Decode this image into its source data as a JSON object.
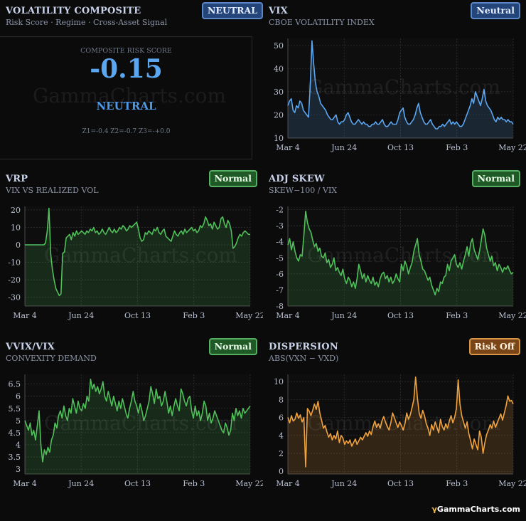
{
  "composite": {
    "title": "VOLATILITY COMPOSITE",
    "subtitle": "Risk Score · Regime · Cross-Asset Signal",
    "badge": "NEUTRAL",
    "label": "COMPOSITE RISK SCORE",
    "value": "-0.15",
    "regime": "NEUTRAL",
    "zscores": "Z1=-0.4  Z2=-0.7  Z3=-+0.0"
  },
  "watermark": "GammaCharts.com",
  "footer": {
    "brand": "GammaCharts.com",
    "icon": "gamma-icon"
  },
  "colors": {
    "blue": "#5ba6f0",
    "green": "#4fc05a",
    "orange": "#f0a23c"
  },
  "chart_data": [
    {
      "id": "vix",
      "type": "area",
      "title": "VIX",
      "subtitle": "CBOE VOLATILITY INDEX",
      "badge": "Neutral",
      "badge_style": "blue",
      "color": "#5ba6f0",
      "ylim": [
        10,
        53
      ],
      "yticks": [
        10,
        20,
        30,
        40,
        50
      ],
      "xticks": [
        "Mar 4",
        "Jun 24",
        "Oct 13",
        "Feb 3",
        "May 22"
      ],
      "values": [
        24,
        26,
        27,
        22,
        21,
        24,
        23,
        26,
        25,
        22,
        21,
        20,
        19,
        33,
        52,
        42,
        34,
        30,
        28,
        25,
        24,
        23,
        22,
        20,
        19,
        18,
        18,
        19,
        20,
        17,
        16,
        17,
        17,
        18,
        20,
        21,
        19,
        17,
        16,
        16,
        17,
        18,
        17,
        16,
        17,
        16,
        16,
        15,
        15,
        16,
        16,
        17,
        16,
        16,
        17,
        18,
        16,
        15,
        15,
        16,
        17,
        16,
        16,
        16,
        18,
        21,
        22,
        23,
        19,
        17,
        16,
        16,
        17,
        18,
        20,
        23,
        25,
        21,
        19,
        17,
        16,
        16,
        17,
        18,
        16,
        15,
        14,
        14,
        15,
        15,
        16,
        15,
        16,
        17,
        18,
        16,
        17,
        16,
        17,
        16,
        15,
        15,
        16,
        18,
        20,
        22,
        24,
        27,
        25,
        30,
        28,
        26,
        24,
        27,
        31,
        26,
        24,
        23,
        22,
        20,
        18,
        17,
        19,
        18,
        19,
        18,
        18,
        17,
        18,
        17,
        17,
        16
      ]
    },
    {
      "id": "vrp",
      "type": "area",
      "title": "VRP",
      "subtitle": "VIX VS REALIZED VOL",
      "badge": "Normal",
      "badge_style": "green",
      "color": "#4fc05a",
      "ylim": [
        -35,
        22
      ],
      "yticks": [
        -30,
        -20,
        -10,
        0,
        10,
        20
      ],
      "xticks": [
        "Mar 4",
        "Jun 24",
        "Oct 13",
        "Feb 3",
        "May 22"
      ],
      "values": [
        0,
        0,
        0,
        0,
        0,
        0,
        0,
        0,
        0,
        0,
        0,
        0,
        1,
        8,
        21,
        -5,
        -14,
        -20,
        -25,
        -27,
        -29,
        -28,
        -5,
        -4,
        4,
        5,
        6,
        3,
        7,
        5,
        8,
        6,
        7,
        8,
        7,
        6,
        8,
        7,
        9,
        8,
        10,
        7,
        8,
        6,
        7,
        9,
        7,
        6,
        8,
        10,
        8,
        7,
        9,
        7,
        8,
        10,
        9,
        11,
        10,
        8,
        9,
        11,
        10,
        11,
        12,
        13,
        9,
        4,
        2,
        3,
        7,
        6,
        8,
        7,
        6,
        9,
        8,
        10,
        7,
        6,
        8,
        9,
        5,
        4,
        3,
        2,
        5,
        8,
        6,
        5,
        7,
        8,
        6,
        9,
        7,
        8,
        9,
        10,
        8,
        9,
        7,
        8,
        11,
        10,
        12,
        16,
        14,
        11,
        12,
        9,
        13,
        11,
        9,
        10,
        15,
        16,
        12,
        10,
        14,
        12,
        8,
        -2,
        -1,
        1,
        4,
        6,
        5,
        7,
        8,
        7,
        6,
        6
      ]
    },
    {
      "id": "adj_skew",
      "type": "area",
      "title": "ADJ SKEW",
      "subtitle": "SKEW−100 / VIX",
      "badge": "Normal",
      "badge_style": "green",
      "color": "#4fc05a",
      "ylim": [
        -8,
        -1.8
      ],
      "yticks": [
        -8,
        -7,
        -6,
        -5,
        -4,
        -3,
        -2
      ],
      "xticks": [
        "Mar 4",
        "Jun 24",
        "Oct 13",
        "Feb 3",
        "May 22"
      ],
      "values": [
        -4.2,
        -3.8,
        -4.5,
        -4.0,
        -4.6,
        -5.0,
        -5.2,
        -4.8,
        -4.9,
        -3.6,
        -2.1,
        -2.8,
        -3.2,
        -3.4,
        -3.9,
        -4.3,
        -4.1,
        -4.6,
        -4.4,
        -4.9,
        -5.0,
        -4.7,
        -5.3,
        -5.1,
        -5.6,
        -5.4,
        -5.0,
        -5.8,
        -5.6,
        -5.9,
        -6.1,
        -5.7,
        -6.3,
        -6.6,
        -6.2,
        -6.4,
        -6.8,
        -6.5,
        -6.9,
        -6.3,
        -5.4,
        -5.8,
        -6.3,
        -6.0,
        -6.5,
        -6.1,
        -6.4,
        -6.6,
        -6.2,
        -6.7,
        -6.5,
        -6.8,
        -6.3,
        -6.0,
        -5.9,
        -6.3,
        -6.1,
        -6.5,
        -6.2,
        -6.6,
        -6.4,
        -6.0,
        -6.3,
        -6.5,
        -5.4,
        -5.8,
        -5.2,
        -5.5,
        -6.0,
        -5.6,
        -5.3,
        -4.6,
        -4.2,
        -3.8,
        -4.8,
        -5.2,
        -5.7,
        -5.8,
        -6.1,
        -6.4,
        -6.2,
        -6.7,
        -7.0,
        -7.3,
        -6.9,
        -7.1,
        -6.5,
        -6.6,
        -6.2,
        -6.1,
        -5.4,
        -5.8,
        -5.2,
        -5.0,
        -4.8,
        -5.4,
        -5.6,
        -5.3,
        -5.7,
        -5.2,
        -4.8,
        -4.3,
        -4.9,
        -4.1,
        -3.8,
        -4.5,
        -4.8,
        -5.1,
        -4.6,
        -3.9,
        -3.2,
        -3.6,
        -4.4,
        -4.8,
        -5.2,
        -4.9,
        -5.5,
        -5.3,
        -5.8,
        -5.4,
        -5.6,
        -5.9,
        -5.6,
        -5.7,
        -5.5,
        -5.8,
        -6.0,
        -5.9
      ]
    },
    {
      "id": "vvix_vix",
      "type": "area",
      "title": "VVIX/VIX",
      "subtitle": "CONVEXITY DEMAND",
      "badge": "Normal",
      "badge_style": "green",
      "color": "#4fc05a",
      "ylim": [
        2.8,
        6.9
      ],
      "yticks": [
        3,
        3.5,
        4,
        4.5,
        5,
        5.5,
        6,
        6.5
      ],
      "xticks": [
        "Mar 4",
        "Jun 24",
        "Oct 13",
        "Feb 3",
        "May 22"
      ],
      "values": [
        5.0,
        4.8,
        4.6,
        4.9,
        4.4,
        4.6,
        4.2,
        4.8,
        5.4,
        4.0,
        3.3,
        3.8,
        3.6,
        3.9,
        3.7,
        4.2,
        4.4,
        4.9,
        4.7,
        5.2,
        5.4,
        5.1,
        5.6,
        5.2,
        5.0,
        5.5,
        5.3,
        5.9,
        5.6,
        5.3,
        5.8,
        5.5,
        5.4,
        5.7,
        5.5,
        6.0,
        5.8,
        6.7,
        6.3,
        6.5,
        6.2,
        6.4,
        6.1,
        6.3,
        6.6,
        6.0,
        5.8,
        6.2,
        5.9,
        5.6,
        6.0,
        5.7,
        5.4,
        5.8,
        5.5,
        5.9,
        5.6,
        5.3,
        5.1,
        5.5,
        5.8,
        6.2,
        5.8,
        5.6,
        5.3,
        5.7,
        5.4,
        5.0,
        5.2,
        5.5,
        5.8,
        6.4,
        6.1,
        5.7,
        6.3,
        5.9,
        6.0,
        5.6,
        5.8,
        6.2,
        5.8,
        5.3,
        5.6,
        5.2,
        5.6,
        5.9,
        5.6,
        5.4,
        6.3,
        6.1,
        5.8,
        5.6,
        5.9,
        6.0,
        5.4,
        5.1,
        5.6,
        5.2,
        5.4,
        5.0,
        5.3,
        5.8,
        5.6,
        5.0,
        5.3,
        4.9,
        5.1,
        5.4,
        5.2,
        5.0,
        4.8,
        4.6,
        4.5,
        4.9,
        4.7,
        4.4,
        4.6,
        5.3,
        5.0,
        5.5,
        5.2,
        5.4,
        5.1,
        5.5,
        5.3,
        5.4,
        5.5,
        5.6
      ]
    },
    {
      "id": "dispersion",
      "type": "area",
      "title": "DISPERSION",
      "subtitle": "ABS(VXN − VXD)",
      "badge": "Risk Off",
      "badge_style": "orange",
      "color": "#f0a23c",
      "ylim": [
        -0.3,
        10.8
      ],
      "yticks": [
        0,
        2,
        4,
        6,
        8,
        10
      ],
      "xticks": [
        "Mar 4",
        "Jun 24",
        "Oct 13",
        "Feb 3",
        "May 22"
      ],
      "values": [
        6.0,
        5.4,
        6.2,
        5.6,
        5.8,
        6.5,
        5.9,
        6.3,
        5.5,
        6.0,
        0.5,
        7.0,
        6.7,
        6.2,
        6.8,
        7.5,
        6.9,
        7.8,
        6.5,
        5.7,
        4.8,
        5.1,
        4.4,
        3.8,
        4.2,
        3.5,
        4.0,
        3.6,
        4.5,
        3.2,
        4.0,
        3.7,
        3.0,
        3.4,
        3.1,
        3.5,
        2.8,
        3.2,
        3.6,
        3.0,
        3.4,
        3.8,
        3.5,
        3.9,
        4.3,
        3.9,
        4.5,
        4.1,
        5.0,
        5.6,
        4.9,
        5.3,
        4.8,
        5.6,
        6.1,
        5.5,
        5.0,
        4.6,
        5.4,
        6.5,
        6.0,
        5.4,
        4.9,
        5.5,
        5.1,
        4.6,
        5.3,
        6.5,
        5.8,
        6.3,
        7.1,
        8.0,
        10.5,
        8.2,
        6.5,
        5.9,
        6.8,
        6.2,
        5.3,
        4.8,
        4.0,
        5.2,
        4.6,
        5.5,
        4.9,
        4.3,
        5.8,
        5.0,
        4.6,
        5.3,
        4.8,
        5.6,
        6.2,
        5.4,
        6.0,
        7.0,
        10.2,
        7.5,
        6.2,
        5.5,
        4.8,
        5.5,
        4.2,
        3.4,
        2.5,
        3.6,
        3.0,
        2.4,
        4.5,
        3.8,
        2.0,
        3.2,
        4.1,
        4.6,
        5.2,
        4.8,
        5.6,
        4.9,
        5.4,
        5.9,
        6.4,
        5.7,
        6.5,
        7.3,
        8.4,
        7.8,
        7.9,
        7.5
      ]
    }
  ]
}
